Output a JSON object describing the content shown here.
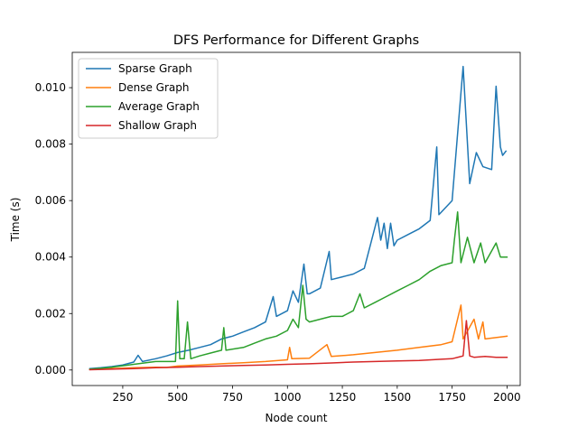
{
  "chart_data": {
    "type": "line",
    "title": "DFS Performance for Different Graphs",
    "xlabel": "Node count",
    "ylabel": "Time (s)",
    "xlim": [
      20,
      2060
    ],
    "ylim": [
      -0.00055,
      0.01125
    ],
    "xticks": [
      250,
      500,
      750,
      1000,
      1250,
      1500,
      1750,
      2000
    ],
    "xtick_labels": [
      "250",
      "500",
      "750",
      "1000",
      "1250",
      "1500",
      "1750",
      "2000"
    ],
    "yticks": [
      0,
      0.002,
      0.004,
      0.006,
      0.008,
      0.01
    ],
    "ytick_labels": [
      "0.000",
      "0.002",
      "0.004",
      "0.006",
      "0.008",
      "0.010"
    ],
    "grid": false,
    "legend": "top-left",
    "series": [
      {
        "name": "Sparse Graph",
        "color": "#1f77b4",
        "points": [
          [
            100,
            5e-05
          ],
          [
            150,
            8e-05
          ],
          [
            200,
            0.00012
          ],
          [
            250,
            0.00018
          ],
          [
            300,
            0.00028
          ],
          [
            320,
            0.00052
          ],
          [
            340,
            0.0003
          ],
          [
            400,
            0.0004
          ],
          [
            450,
            0.0005
          ],
          [
            500,
            0.00062
          ],
          [
            550,
            0.0007
          ],
          [
            600,
            0.0008
          ],
          [
            650,
            0.0009
          ],
          [
            700,
            0.0011
          ],
          [
            750,
            0.0012
          ],
          [
            800,
            0.00135
          ],
          [
            850,
            0.0015
          ],
          [
            900,
            0.0017
          ],
          [
            935,
            0.0026
          ],
          [
            950,
            0.0019
          ],
          [
            1000,
            0.0021
          ],
          [
            1025,
            0.0028
          ],
          [
            1050,
            0.0024
          ],
          [
            1075,
            0.00375
          ],
          [
            1090,
            0.0027
          ],
          [
            1100,
            0.0027
          ],
          [
            1150,
            0.0029
          ],
          [
            1190,
            0.0042
          ],
          [
            1200,
            0.0032
          ],
          [
            1250,
            0.0033
          ],
          [
            1300,
            0.0034
          ],
          [
            1350,
            0.0036
          ],
          [
            1410,
            0.0054
          ],
          [
            1425,
            0.0046
          ],
          [
            1440,
            0.0052
          ],
          [
            1455,
            0.0043
          ],
          [
            1470,
            0.0052
          ],
          [
            1485,
            0.0044
          ],
          [
            1500,
            0.0046
          ],
          [
            1550,
            0.0048
          ],
          [
            1600,
            0.005
          ],
          [
            1650,
            0.0053
          ],
          [
            1680,
            0.0079
          ],
          [
            1690,
            0.0055
          ],
          [
            1750,
            0.006
          ],
          [
            1800,
            0.01075
          ],
          [
            1830,
            0.0066
          ],
          [
            1860,
            0.0077
          ],
          [
            1890,
            0.0072
          ],
          [
            1930,
            0.0071
          ],
          [
            1950,
            0.01005
          ],
          [
            1970,
            0.0079
          ],
          [
            1980,
            0.0076
          ],
          [
            1995,
            0.00775
          ]
        ]
      },
      {
        "name": "Dense Graph",
        "color": "#ff7f0e",
        "points": [
          [
            100,
            2e-05
          ],
          [
            200,
            5e-05
          ],
          [
            300,
            8e-05
          ],
          [
            400,
            0.0001
          ],
          [
            450,
            9e-05
          ],
          [
            500,
            0.00014
          ],
          [
            600,
            0.00018
          ],
          [
            700,
            0.00022
          ],
          [
            800,
            0.00026
          ],
          [
            900,
            0.0003
          ],
          [
            1000,
            0.00036
          ],
          [
            1010,
            0.0008
          ],
          [
            1020,
            0.0004
          ],
          [
            1100,
            0.00042
          ],
          [
            1180,
            0.0009
          ],
          [
            1200,
            0.00048
          ],
          [
            1300,
            0.00054
          ],
          [
            1400,
            0.00062
          ],
          [
            1500,
            0.0007
          ],
          [
            1600,
            0.0008
          ],
          [
            1700,
            0.0009
          ],
          [
            1750,
            0.001
          ],
          [
            1790,
            0.0023
          ],
          [
            1800,
            0.0011
          ],
          [
            1850,
            0.0018
          ],
          [
            1870,
            0.0011
          ],
          [
            1890,
            0.0017
          ],
          [
            1900,
            0.0011
          ],
          [
            2000,
            0.0012
          ]
        ]
      },
      {
        "name": "Average Graph",
        "color": "#2ca02c",
        "points": [
          [
            100,
            3e-05
          ],
          [
            150,
            6e-05
          ],
          [
            200,
            0.0001
          ],
          [
            250,
            0.00015
          ],
          [
            300,
            0.0002
          ],
          [
            400,
            0.0003
          ],
          [
            490,
            0.0003
          ],
          [
            500,
            0.00245
          ],
          [
            510,
            0.0004
          ],
          [
            530,
            0.0004
          ],
          [
            545,
            0.0017
          ],
          [
            560,
            0.0004
          ],
          [
            600,
            0.0005
          ],
          [
            650,
            0.0006
          ],
          [
            700,
            0.0007
          ],
          [
            710,
            0.0015
          ],
          [
            720,
            0.0007
          ],
          [
            800,
            0.0008
          ],
          [
            850,
            0.00095
          ],
          [
            900,
            0.0011
          ],
          [
            950,
            0.0012
          ],
          [
            1000,
            0.0014
          ],
          [
            1025,
            0.0018
          ],
          [
            1050,
            0.0015
          ],
          [
            1070,
            0.003
          ],
          [
            1085,
            0.0018
          ],
          [
            1100,
            0.0017
          ],
          [
            1150,
            0.0018
          ],
          [
            1200,
            0.0019
          ],
          [
            1250,
            0.0019
          ],
          [
            1300,
            0.0021
          ],
          [
            1330,
            0.0027
          ],
          [
            1350,
            0.0022
          ],
          [
            1400,
            0.0024
          ],
          [
            1450,
            0.0026
          ],
          [
            1500,
            0.0028
          ],
          [
            1550,
            0.003
          ],
          [
            1600,
            0.0032
          ],
          [
            1650,
            0.0035
          ],
          [
            1700,
            0.0037
          ],
          [
            1750,
            0.0038
          ],
          [
            1760,
            0.0046
          ],
          [
            1775,
            0.0056
          ],
          [
            1790,
            0.0038
          ],
          [
            1820,
            0.0047
          ],
          [
            1850,
            0.0038
          ],
          [
            1880,
            0.0045
          ],
          [
            1900,
            0.0038
          ],
          [
            1950,
            0.0045
          ],
          [
            1970,
            0.004
          ],
          [
            2000,
            0.004
          ]
        ]
      },
      {
        "name": "Shallow Graph",
        "color": "#d62728",
        "points": [
          [
            100,
            1e-05
          ],
          [
            200,
            3e-05
          ],
          [
            300,
            5e-05
          ],
          [
            400,
            8e-05
          ],
          [
            500,
            0.0001
          ],
          [
            600,
            0.00012
          ],
          [
            700,
            0.00014
          ],
          [
            800,
            0.00016
          ],
          [
            900,
            0.00018
          ],
          [
            1000,
            0.0002
          ],
          [
            1100,
            0.00022
          ],
          [
            1200,
            0.00025
          ],
          [
            1300,
            0.00028
          ],
          [
            1400,
            0.0003
          ],
          [
            1500,
            0.00032
          ],
          [
            1600,
            0.00034
          ],
          [
            1700,
            0.00038
          ],
          [
            1750,
            0.0004
          ],
          [
            1800,
            0.0005
          ],
          [
            1815,
            0.00175
          ],
          [
            1830,
            0.0005
          ],
          [
            1850,
            0.00045
          ],
          [
            1900,
            0.00048
          ],
          [
            1950,
            0.00045
          ],
          [
            2000,
            0.00045
          ]
        ]
      }
    ]
  }
}
